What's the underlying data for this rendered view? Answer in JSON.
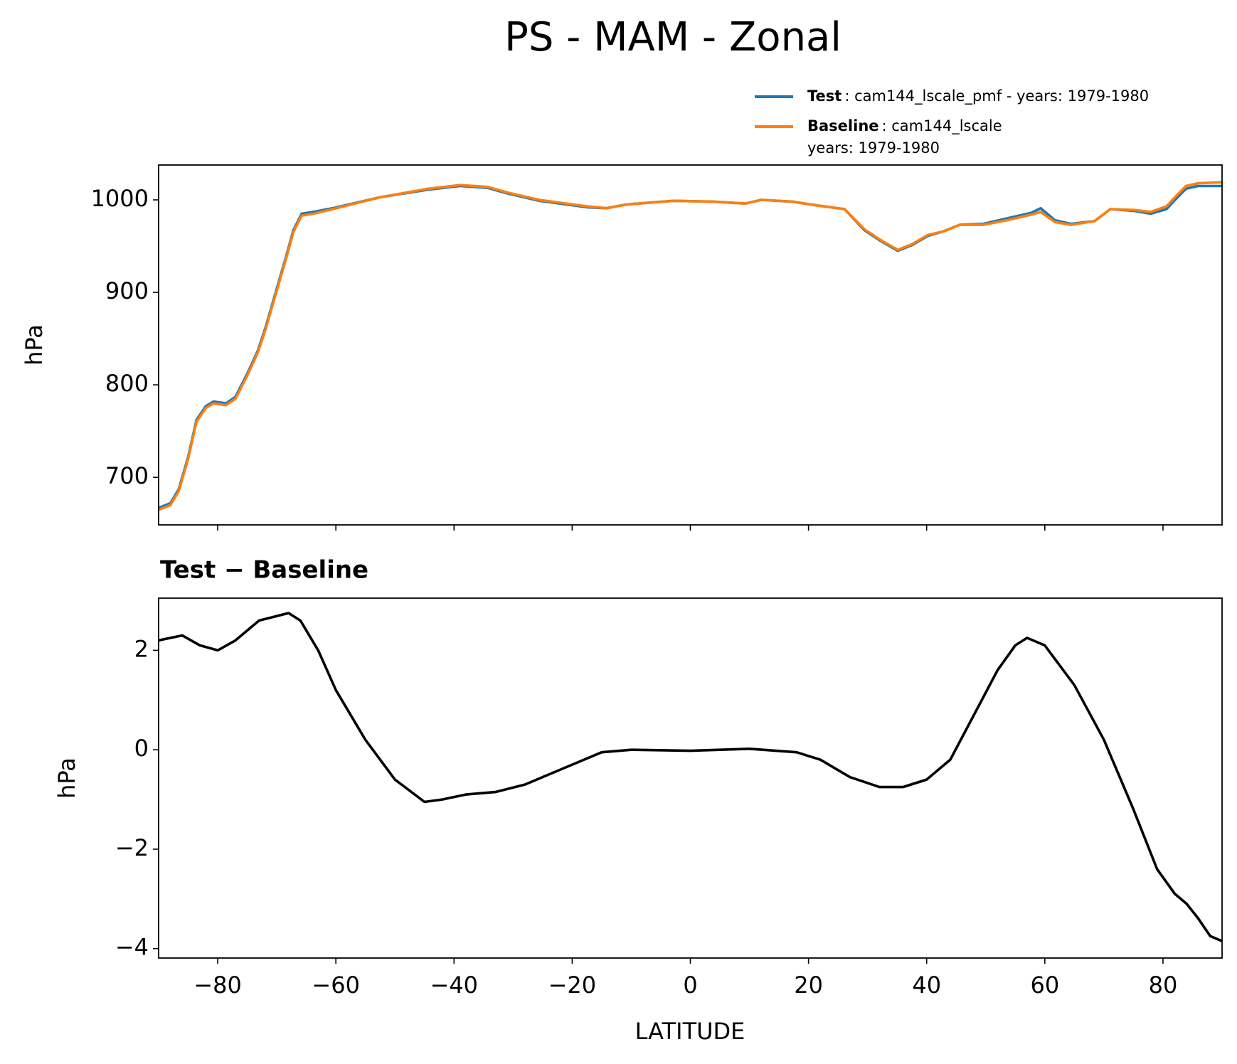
{
  "chart_data": [
    {
      "type": "line",
      "title": "PS - MAM - Zonal",
      "ylabel": "hPa",
      "x": [
        -90,
        -88,
        -86.6,
        -85,
        -83.6,
        -82,
        -80.7,
        -78.6,
        -77,
        -75,
        -73.2,
        -71.9,
        -70.1,
        -68.5,
        -67.2,
        -65.8,
        -63.8,
        -60.5,
        -52.4,
        -44.4,
        -39,
        -34.3,
        -31,
        -25.6,
        -17.5,
        -14.2,
        -10.8,
        -2.8,
        4,
        9.3,
        12,
        17.4,
        21.4,
        26.1,
        29.5,
        32.1,
        35.1,
        37.5,
        40.2,
        42.9,
        45.6,
        49.6,
        53.6,
        57.7,
        59.3,
        61.7,
        64.4,
        68.4,
        71.1,
        75.2,
        77.9,
        80.6,
        81.9,
        83.9,
        85.9,
        90
      ],
      "series": [
        {
          "name": "Test",
          "description": [
            ": cam144_lscale_pmf - years: 1979-1980"
          ],
          "color": "#1f77b4",
          "values": [
            667,
            672,
            687,
            722,
            762,
            777,
            782,
            780,
            787,
            812,
            837,
            862,
            902,
            937,
            967,
            985,
            987,
            991,
            1003,
            1011,
            1015,
            1013,
            1007,
            999,
            992,
            991,
            995,
            999,
            998,
            996,
            1000,
            998,
            994,
            990,
            967,
            956,
            945,
            951,
            961,
            966,
            973,
            974,
            980,
            986,
            991,
            978,
            974,
            977,
            990,
            988,
            985,
            990,
            999,
            1012,
            1015,
            1015
          ]
        },
        {
          "name": "Baseline",
          "description": [
            ": cam144_lscale",
            "years: 1979-1980"
          ],
          "color": "#ff7f0e",
          "values": [
            665,
            670,
            685,
            720,
            760,
            775,
            780,
            778,
            785,
            810,
            835,
            860,
            900,
            935,
            965,
            983,
            985,
            990,
            1003,
            1012,
            1016,
            1014,
            1008,
            1000,
            993,
            991,
            995,
            999,
            998,
            996,
            1000,
            998,
            994,
            990,
            968,
            957,
            946,
            952,
            962,
            966,
            973,
            973,
            978,
            984,
            987,
            976,
            973,
            977,
            990,
            989,
            987,
            993,
            1002,
            1015,
            1018,
            1019
          ]
        }
      ],
      "xlim": [
        -90,
        90
      ],
      "xticks": [
        -80,
        -60,
        -40,
        -20,
        0,
        20,
        40,
        60,
        80
      ],
      "ylim": [
        648.6,
        1037.7
      ],
      "yticks": [
        700,
        800,
        900,
        1000
      ],
      "legend": "upper right"
    },
    {
      "type": "line",
      "title": "Test − Baseline",
      "ylabel": "hPa",
      "xlabel": "LATITUDE",
      "x": [
        -90,
        -86,
        -83,
        -80,
        -77,
        -73,
        -68,
        -66,
        -63,
        -60,
        -55,
        -50,
        -45,
        -42,
        -38,
        -33,
        -28,
        -20,
        -15,
        -10,
        0,
        5,
        10,
        18,
        22,
        27,
        32,
        36,
        40,
        44,
        48,
        52,
        55,
        57,
        60,
        65,
        70,
        75,
        79,
        82,
        84,
        86,
        88,
        90
      ],
      "series": [
        {
          "color": "#000000",
          "values": [
            2.2,
            2.3,
            2.1,
            2.0,
            2.2,
            2.6,
            2.75,
            2.6,
            2.0,
            1.2,
            0.2,
            -0.6,
            -1.05,
            -1.0,
            -0.9,
            -0.85,
            -0.7,
            -0.3,
            -0.05,
            0.0,
            -0.02,
            0.0,
            0.02,
            -0.05,
            -0.2,
            -0.55,
            -0.75,
            -0.75,
            -0.6,
            -0.2,
            0.7,
            1.6,
            2.1,
            2.25,
            2.1,
            1.3,
            0.2,
            -1.2,
            -2.4,
            -2.9,
            -3.1,
            -3.4,
            -3.75,
            -3.85
          ]
        }
      ],
      "xlim": [
        -90,
        90
      ],
      "xticks": [
        {
          "value": -80,
          "label": "−80"
        },
        {
          "value": -60,
          "label": "−60"
        },
        {
          "value": -40,
          "label": "−40"
        },
        {
          "value": -20,
          "label": "−20"
        },
        0,
        20,
        40,
        60,
        80
      ],
      "ylim": [
        -4.19,
        3.05
      ],
      "yticks": [
        {
          "value": -4,
          "label": "−4"
        },
        {
          "value": -2,
          "label": "−2"
        },
        0,
        2
      ]
    }
  ]
}
